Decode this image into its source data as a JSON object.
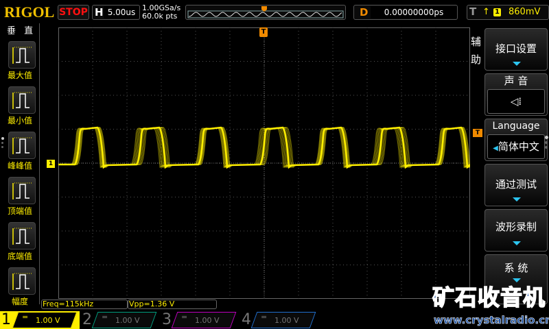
{
  "header": {
    "brand": "RIGOL",
    "run_state": "STOP",
    "horizontal": {
      "key": "H",
      "timebase": "5.00us"
    },
    "sample_rate": "1.00GSa/s",
    "memory_depth": "60.0k pts",
    "delay": {
      "key": "D",
      "value": "0.00000000ps"
    },
    "trigger": {
      "key": "T",
      "edge": "rising-edge-icon",
      "source": "1",
      "level": "860mV"
    }
  },
  "left_menu": {
    "title": "垂 直",
    "items": [
      {
        "label": "最大值",
        "icon": "max-icon"
      },
      {
        "label": "最小值",
        "icon": "min-icon"
      },
      {
        "label": "峰峰值",
        "icon": "peak-peak-icon"
      },
      {
        "label": "顶端值",
        "icon": "top-icon"
      },
      {
        "label": "底端值",
        "icon": "base-icon"
      },
      {
        "label": "幅度",
        "icon": "amplitude-icon"
      }
    ]
  },
  "right_menu": {
    "title": "辅助",
    "items": [
      {
        "label": "接口设置"
      },
      {
        "label": "声 音",
        "value": "speaker-icon"
      },
      {
        "label": "Language",
        "value": "简体中文"
      },
      {
        "label": "通过测试"
      },
      {
        "label": "波形录制"
      },
      {
        "label": "系 统"
      }
    ]
  },
  "measurements": {
    "freq": "Freq=115kHz",
    "vpp": "Vpp=1.36 V"
  },
  "channels": [
    {
      "num": "1",
      "coupling": "=",
      "scale": "1.00 V",
      "color": "#ffef00",
      "active": true
    },
    {
      "num": "2",
      "coupling": "=",
      "scale": "1.00 V",
      "color": "#00a080",
      "active": false
    },
    {
      "num": "3",
      "coupling": "=",
      "scale": "1.00 V",
      "color": "#c000c0",
      "active": false
    },
    {
      "num": "4",
      "coupling": "=",
      "scale": "1.00 V",
      "color": "#2070d0",
      "active": false
    }
  ],
  "markers": {
    "trigger_pos": "T",
    "channel1": "1",
    "trigger_level": "T"
  },
  "watermark": {
    "title": "矿石收音机",
    "url": "www.crystalradio.cn"
  },
  "colors": {
    "ch1": "#ffef00",
    "trigger": "#f08a00",
    "accent": "#2cc5f0"
  }
}
